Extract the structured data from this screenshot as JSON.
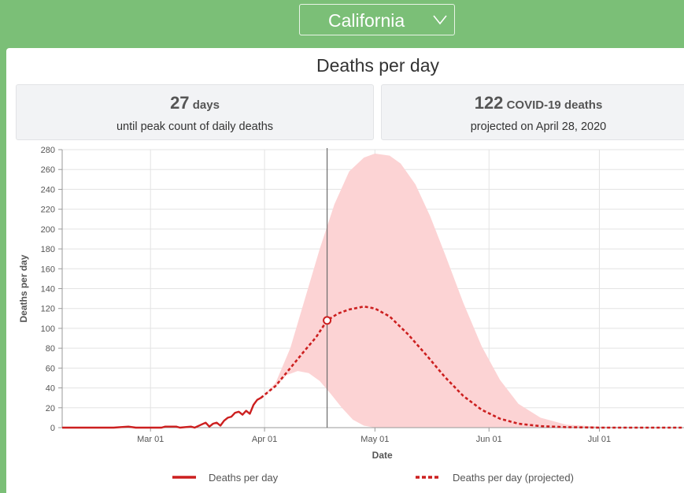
{
  "header": {
    "state_select": {
      "selected": "California",
      "icon": "chevron-down-icon"
    }
  },
  "summary": {
    "peak_days": {
      "value": "27",
      "unit": "days",
      "caption": "until peak count of daily deaths"
    },
    "peak_deaths": {
      "value": "122",
      "unit": "COVID-19 deaths",
      "caption": "projected on April 28, 2020"
    }
  },
  "colors": {
    "actual": "#cc1f1f",
    "projected": "#cc1f1f",
    "band": "#fcd3d4",
    "green": "#7bbf77"
  },
  "chart_data": {
    "type": "line",
    "title": "Deaths per day",
    "xlabel": "Date",
    "ylabel": "Deaths per day",
    "ylim": [
      0,
      280
    ],
    "yticks": [
      0,
      20,
      40,
      60,
      80,
      100,
      120,
      140,
      160,
      180,
      200,
      220,
      240,
      260,
      280
    ],
    "xticks": [
      {
        "date": "2020-03-01",
        "label": "Mar 01"
      },
      {
        "date": "2020-04-01",
        "label": "Apr 01"
      },
      {
        "date": "2020-05-01",
        "label": "May 01"
      },
      {
        "date": "2020-06-01",
        "label": "Jun 01"
      },
      {
        "date": "2020-07-01",
        "label": "Jul 01"
      }
    ],
    "xlim": [
      "2020-02-06",
      "2020-07-24"
    ],
    "today": "2020-04-18",
    "grid": true,
    "legend_position": "bottom",
    "series": [
      {
        "name": "Deaths per day",
        "style": "solid",
        "points": [
          [
            "2020-02-06",
            0
          ],
          [
            "2020-02-20",
            0
          ],
          [
            "2020-02-24",
            1
          ],
          [
            "2020-02-26",
            0
          ],
          [
            "2020-03-04",
            0
          ],
          [
            "2020-03-05",
            1
          ],
          [
            "2020-03-08",
            1
          ],
          [
            "2020-03-09",
            0
          ],
          [
            "2020-03-12",
            1
          ],
          [
            "2020-03-13",
            0
          ],
          [
            "2020-03-16",
            5
          ],
          [
            "2020-03-17",
            1
          ],
          [
            "2020-03-18",
            4
          ],
          [
            "2020-03-19",
            5
          ],
          [
            "2020-03-20",
            2
          ],
          [
            "2020-03-21",
            7
          ],
          [
            "2020-03-22",
            10
          ],
          [
            "2020-03-23",
            11
          ],
          [
            "2020-03-24",
            15
          ],
          [
            "2020-03-25",
            16
          ],
          [
            "2020-03-26",
            13
          ],
          [
            "2020-03-27",
            17
          ],
          [
            "2020-03-28",
            14
          ],
          [
            "2020-03-29",
            23
          ],
          [
            "2020-03-30",
            28
          ],
          [
            "2020-03-31",
            30
          ]
        ]
      },
      {
        "name": "Deaths per day (projected)",
        "style": "dashed",
        "points": [
          [
            "2020-03-31",
            30
          ],
          [
            "2020-04-04",
            42
          ],
          [
            "2020-04-08",
            60
          ],
          [
            "2020-04-12",
            78
          ],
          [
            "2020-04-15",
            91
          ],
          [
            "2020-04-18",
            108
          ],
          [
            "2020-04-21",
            115
          ],
          [
            "2020-04-24",
            119
          ],
          [
            "2020-04-28",
            122
          ],
          [
            "2020-05-01",
            120
          ],
          [
            "2020-05-05",
            112
          ],
          [
            "2020-05-10",
            94
          ],
          [
            "2020-05-15",
            73
          ],
          [
            "2020-05-20",
            51
          ],
          [
            "2020-05-25",
            32
          ],
          [
            "2020-05-30",
            18
          ],
          [
            "2020-06-04",
            9
          ],
          [
            "2020-06-09",
            4
          ],
          [
            "2020-06-15",
            1.5
          ],
          [
            "2020-06-22",
            0.5
          ],
          [
            "2020-07-01",
            0
          ],
          [
            "2020-07-24",
            0
          ]
        ]
      }
    ],
    "band": {
      "upper": [
        [
          "2020-03-31",
          30
        ],
        [
          "2020-04-04",
          45
        ],
        [
          "2020-04-08",
          80
        ],
        [
          "2020-04-12",
          130
        ],
        [
          "2020-04-16",
          180
        ],
        [
          "2020-04-20",
          225
        ],
        [
          "2020-04-24",
          258
        ],
        [
          "2020-04-28",
          272
        ],
        [
          "2020-05-01",
          276
        ],
        [
          "2020-05-05",
          274
        ],
        [
          "2020-05-08",
          266
        ],
        [
          "2020-05-12",
          245
        ],
        [
          "2020-05-16",
          213
        ],
        [
          "2020-05-20",
          175
        ],
        [
          "2020-05-25",
          126
        ],
        [
          "2020-05-30",
          82
        ],
        [
          "2020-06-04",
          48
        ],
        [
          "2020-06-09",
          24
        ],
        [
          "2020-06-15",
          10
        ],
        [
          "2020-06-22",
          3
        ],
        [
          "2020-07-01",
          1
        ],
        [
          "2020-07-24",
          0
        ]
      ],
      "lower": [
        [
          "2020-03-31",
          30
        ],
        [
          "2020-04-04",
          41
        ],
        [
          "2020-04-07",
          53
        ],
        [
          "2020-04-10",
          57
        ],
        [
          "2020-04-13",
          55
        ],
        [
          "2020-04-16",
          47
        ],
        [
          "2020-04-19",
          34
        ],
        [
          "2020-04-22",
          20
        ],
        [
          "2020-04-25",
          8
        ],
        [
          "2020-04-28",
          2
        ],
        [
          "2020-05-01",
          0
        ],
        [
          "2020-07-24",
          0
        ]
      ]
    }
  },
  "legend": {
    "actual_label": "Deaths per day",
    "projected_label": "Deaths per day (projected)"
  }
}
